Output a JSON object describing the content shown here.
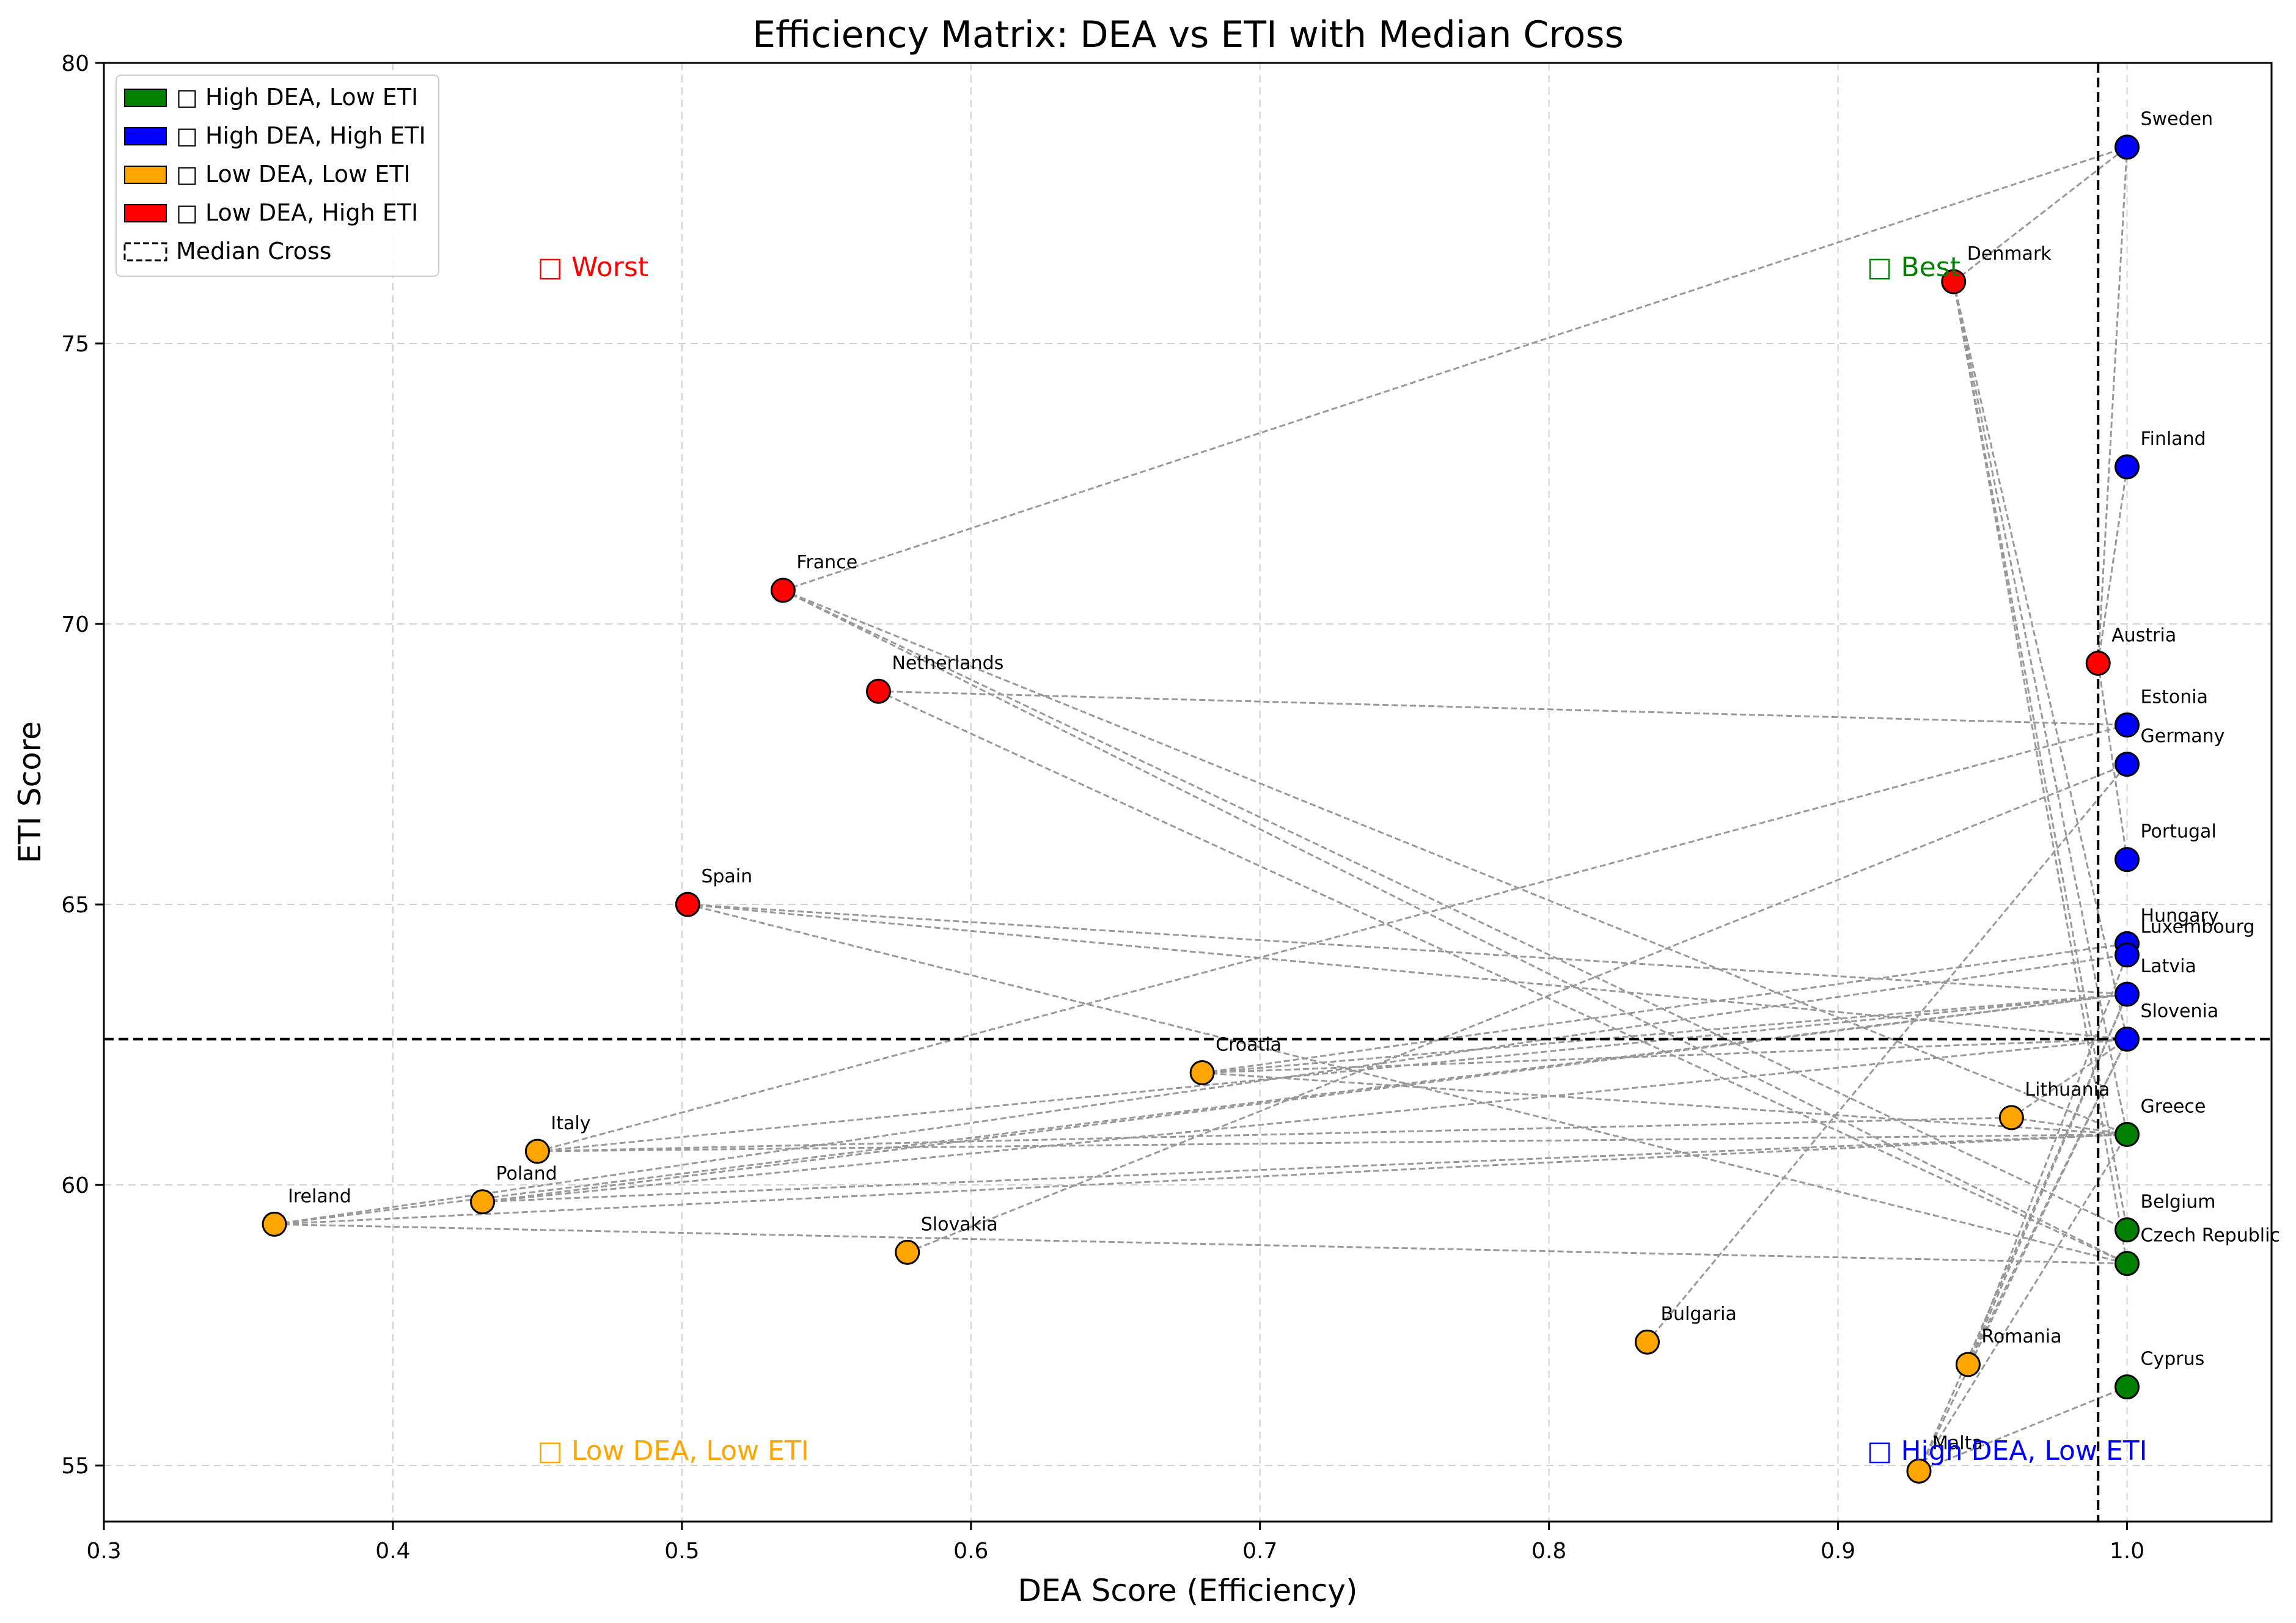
{
  "chart_data": {
    "type": "scatter",
    "title": "Efficiency Matrix: DEA vs ETI with Median Cross",
    "xlabel": "DEA Score (Efficiency)",
    "ylabel": "ETI Score",
    "xlim": [
      0.3,
      1.05
    ],
    "ylim": [
      54,
      80
    ],
    "xticks": [
      0.3,
      0.4,
      0.5,
      0.6,
      0.7,
      0.8,
      0.9,
      1.0
    ],
    "yticks": [
      55,
      60,
      65,
      70,
      75,
      80
    ],
    "grid": true,
    "median_cross": {
      "x": 0.99,
      "y": 62.6
    },
    "colors": {
      "high_dea_low_eti": "#008000",
      "high_dea_high_eti": "#0000ff",
      "low_dea_low_eti": "#ffa500",
      "low_dea_high_eti": "#ff0000",
      "connector": "#999999"
    },
    "legend": {
      "placement": "top-left",
      "entries": [
        {
          "label": "□ High DEA, Low ETI",
          "color": "#008000",
          "style": "patch"
        },
        {
          "label": "□ High DEA, High ETI",
          "color": "#0000ff",
          "style": "patch"
        },
        {
          "label": "□ Low DEA, Low ETI",
          "color": "#ffa500",
          "style": "patch"
        },
        {
          "label": "□ Low DEA, High ETI",
          "color": "#ff0000",
          "style": "patch"
        },
        {
          "label": "Median Cross",
          "color": "#000000",
          "style": "dashed"
        }
      ]
    },
    "annotations": [
      {
        "text": "□ Worst",
        "x": 0.45,
        "y": 76.2,
        "color": "#ff0000"
      },
      {
        "text": "□ Best",
        "x": 0.91,
        "y": 76.2,
        "color": "#008000"
      },
      {
        "text": "□ Low DEA, Low ETI",
        "x": 0.45,
        "y": 55.1,
        "color": "#ffa500"
      },
      {
        "text": "□ High DEA, Low ETI",
        "x": 0.91,
        "y": 55.1,
        "color": "#0000ff"
      }
    ],
    "points": [
      {
        "label": "Sweden",
        "x": 1.0,
        "y": 78.5,
        "group": "high_dea_high_eti"
      },
      {
        "label": "Denmark",
        "x": 0.94,
        "y": 76.1,
        "group": "low_dea_high_eti"
      },
      {
        "label": "Finland",
        "x": 1.0,
        "y": 72.8,
        "group": "high_dea_high_eti"
      },
      {
        "label": "France",
        "x": 0.535,
        "y": 70.6,
        "group": "low_dea_high_eti"
      },
      {
        "label": "Austria",
        "x": 0.99,
        "y": 69.3,
        "group": "low_dea_high_eti"
      },
      {
        "label": "Netherlands",
        "x": 0.568,
        "y": 68.8,
        "group": "low_dea_high_eti"
      },
      {
        "label": "Estonia",
        "x": 1.0,
        "y": 68.2,
        "group": "high_dea_high_eti"
      },
      {
        "label": "Germany",
        "x": 1.0,
        "y": 67.5,
        "group": "high_dea_high_eti"
      },
      {
        "label": "Portugal",
        "x": 1.0,
        "y": 65.8,
        "group": "high_dea_high_eti"
      },
      {
        "label": "Spain",
        "x": 0.502,
        "y": 65.0,
        "group": "low_dea_high_eti"
      },
      {
        "label": "Hungary",
        "x": 1.0,
        "y": 64.3,
        "group": "high_dea_high_eti"
      },
      {
        "label": "Luxembourg",
        "x": 1.0,
        "y": 64.1,
        "group": "high_dea_high_eti"
      },
      {
        "label": "Latvia",
        "x": 1.0,
        "y": 63.4,
        "group": "high_dea_high_eti"
      },
      {
        "label": "Slovenia",
        "x": 1.0,
        "y": 62.6,
        "group": "high_dea_high_eti"
      },
      {
        "label": "Croatia",
        "x": 0.68,
        "y": 62.0,
        "group": "low_dea_low_eti"
      },
      {
        "label": "Lithuania",
        "x": 0.96,
        "y": 61.2,
        "group": "low_dea_low_eti"
      },
      {
        "label": "Greece",
        "x": 1.0,
        "y": 60.9,
        "group": "high_dea_low_eti"
      },
      {
        "label": "Italy",
        "x": 0.45,
        "y": 60.6,
        "group": "low_dea_low_eti"
      },
      {
        "label": "Poland",
        "x": 0.431,
        "y": 59.7,
        "group": "low_dea_low_eti"
      },
      {
        "label": "Ireland",
        "x": 0.359,
        "y": 59.3,
        "group": "low_dea_low_eti"
      },
      {
        "label": "Belgium",
        "x": 1.0,
        "y": 59.2,
        "group": "high_dea_low_eti"
      },
      {
        "label": "Slovakia",
        "x": 0.578,
        "y": 58.8,
        "group": "low_dea_low_eti"
      },
      {
        "label": "Czech Republic",
        "x": 1.0,
        "y": 58.6,
        "group": "high_dea_low_eti"
      },
      {
        "label": "Bulgaria",
        "x": 0.834,
        "y": 57.2,
        "group": "low_dea_low_eti"
      },
      {
        "label": "Romania",
        "x": 0.945,
        "y": 56.8,
        "group": "low_dea_low_eti"
      },
      {
        "label": "Cyprus",
        "x": 1.0,
        "y": 56.4,
        "group": "high_dea_low_eti"
      },
      {
        "label": "Malta",
        "x": 0.928,
        "y": 54.9,
        "group": "low_dea_low_eti"
      }
    ],
    "connections": [
      [
        "France",
        "Sweden"
      ],
      [
        "France",
        "Belgium"
      ],
      [
        "France",
        "Czech Republic"
      ],
      [
        "France",
        "Greece"
      ],
      [
        "Denmark",
        "Sweden"
      ],
      [
        "Denmark",
        "Greece"
      ],
      [
        "Denmark",
        "Belgium"
      ],
      [
        "Denmark",
        "Czech Republic"
      ],
      [
        "Denmark",
        "Slovenia"
      ],
      [
        "Netherlands",
        "Estonia"
      ],
      [
        "Netherlands",
        "Czech Republic"
      ],
      [
        "Spain",
        "Latvia"
      ],
      [
        "Spain",
        "Czech Republic"
      ],
      [
        "Spain",
        "Slovenia"
      ],
      [
        "Italy",
        "Estonia"
      ],
      [
        "Italy",
        "Latvia"
      ],
      [
        "Italy",
        "Lithuania"
      ],
      [
        "Italy",
        "Greece"
      ],
      [
        "Poland",
        "Latvia"
      ],
      [
        "Poland",
        "Slovenia"
      ],
      [
        "Poland",
        "Greece"
      ],
      [
        "Ireland",
        "Latvia"
      ],
      [
        "Ireland",
        "Greece"
      ],
      [
        "Ireland",
        "Czech Republic"
      ],
      [
        "Ireland",
        "Luxembourg"
      ],
      [
        "Croatia",
        "Hungary"
      ],
      [
        "Croatia",
        "Latvia"
      ],
      [
        "Croatia",
        "Slovenia"
      ],
      [
        "Croatia",
        "Greece"
      ],
      [
        "Slovakia",
        "Germany"
      ],
      [
        "Bulgaria",
        "Germany"
      ],
      [
        "Romania",
        "Luxembourg"
      ],
      [
        "Romania",
        "Latvia"
      ],
      [
        "Romania",
        "Slovenia"
      ],
      [
        "Malta",
        "Cyprus"
      ],
      [
        "Malta",
        "Latvia"
      ],
      [
        "Malta",
        "Slovenia"
      ],
      [
        "Malta",
        "Greece"
      ],
      [
        "Lithuania",
        "Greece"
      ],
      [
        "Lithuania",
        "Slovenia"
      ],
      [
        "Sweden",
        "Austria"
      ],
      [
        "Finland",
        "Austria"
      ],
      [
        "Austria",
        "Portugal"
      ]
    ]
  }
}
